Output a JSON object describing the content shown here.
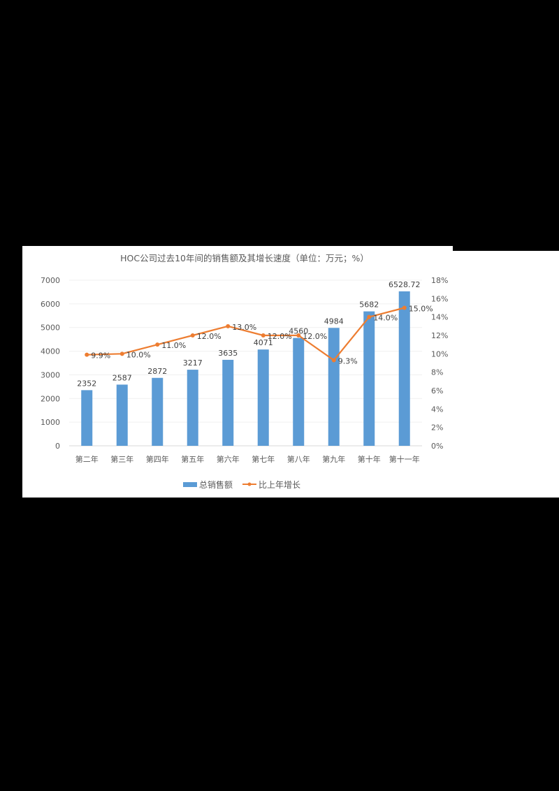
{
  "chart_data": {
    "type": "bar+line",
    "title": "HOC公司过去10年间的销售额及其增长速度（单位：万元；%）",
    "categories": [
      "第二年",
      "第三年",
      "第四年",
      "第五年",
      "第六年",
      "第七年",
      "第八年",
      "第九年",
      "第十年",
      "第十一年"
    ],
    "series": [
      {
        "name": "总销售额",
        "type": "bar",
        "axis": "left",
        "color": "#5b9bd5",
        "values": [
          2352,
          2587,
          2872,
          3217,
          3635,
          4071,
          4560,
          4984,
          5682,
          6528.72
        ],
        "labels": [
          "2352",
          "2587",
          "2872",
          "3217",
          "3635",
          "4071",
          "4560",
          "4984",
          "5682",
          "6528.72"
        ]
      },
      {
        "name": "比上年增长",
        "type": "line",
        "axis": "right",
        "color": "#ed7d31",
        "values": [
          9.9,
          10.0,
          11.0,
          12.0,
          13.0,
          12.0,
          12.0,
          9.3,
          14.0,
          15.0
        ],
        "labels": [
          "9.9%",
          "10.0%",
          "11.0%",
          "12.0%",
          "13.0%",
          "12.0%",
          "12.0%",
          "9.3%",
          "14.0%",
          "15.0%"
        ]
      }
    ],
    "y_left": {
      "ylim": [
        0,
        7000
      ],
      "ticks": [
        "0",
        "1000",
        "2000",
        "3000",
        "4000",
        "5000",
        "6000",
        "7000"
      ]
    },
    "y_right": {
      "ylim": [
        0,
        18
      ],
      "ticks": [
        "0%",
        "2%",
        "4%",
        "6%",
        "8%",
        "10%",
        "12%",
        "14%",
        "16%",
        "18%"
      ]
    },
    "xlabel": "",
    "ylabel": "",
    "grid": true,
    "legend_position": "bottom"
  }
}
